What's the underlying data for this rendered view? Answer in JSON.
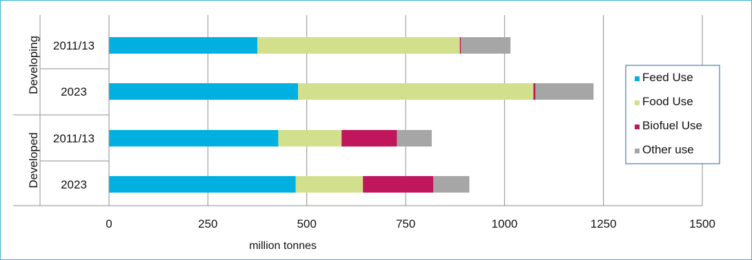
{
  "chart_data": {
    "type": "bar",
    "orientation": "horizontal",
    "stacked": true,
    "xlabel": "million tonnes",
    "xlim": [
      0,
      1500
    ],
    "xticks": [
      0,
      250,
      500,
      750,
      1000,
      1250,
      1500
    ],
    "grid": "vertical",
    "legend_position": "right",
    "groups": [
      {
        "name": "Developing",
        "categories": [
          "2011/13",
          "2023"
        ]
      },
      {
        "name": "Developed",
        "categories": [
          "2011/13",
          "2023"
        ]
      }
    ],
    "rows": [
      {
        "group": "Developing",
        "label": "2011/13"
      },
      {
        "group": "Developing",
        "label": "2023"
      },
      {
        "group": "Developed",
        "label": "2011/13"
      },
      {
        "group": "Developed",
        "label": "2023"
      }
    ],
    "series": [
      {
        "name": "Feed Use",
        "color": "#00b0e0",
        "values": [
          375,
          478,
          428,
          472
        ]
      },
      {
        "name": "Food Use",
        "color": "#d2e08e",
        "values": [
          512,
          595,
          160,
          170
        ]
      },
      {
        "name": "Biofuel Use",
        "color": "#c0175c",
        "values": [
          3,
          5,
          140,
          178
        ]
      },
      {
        "name": "Other use",
        "color": "#a6a6a6",
        "values": [
          125,
          147,
          88,
          91
        ]
      }
    ]
  }
}
